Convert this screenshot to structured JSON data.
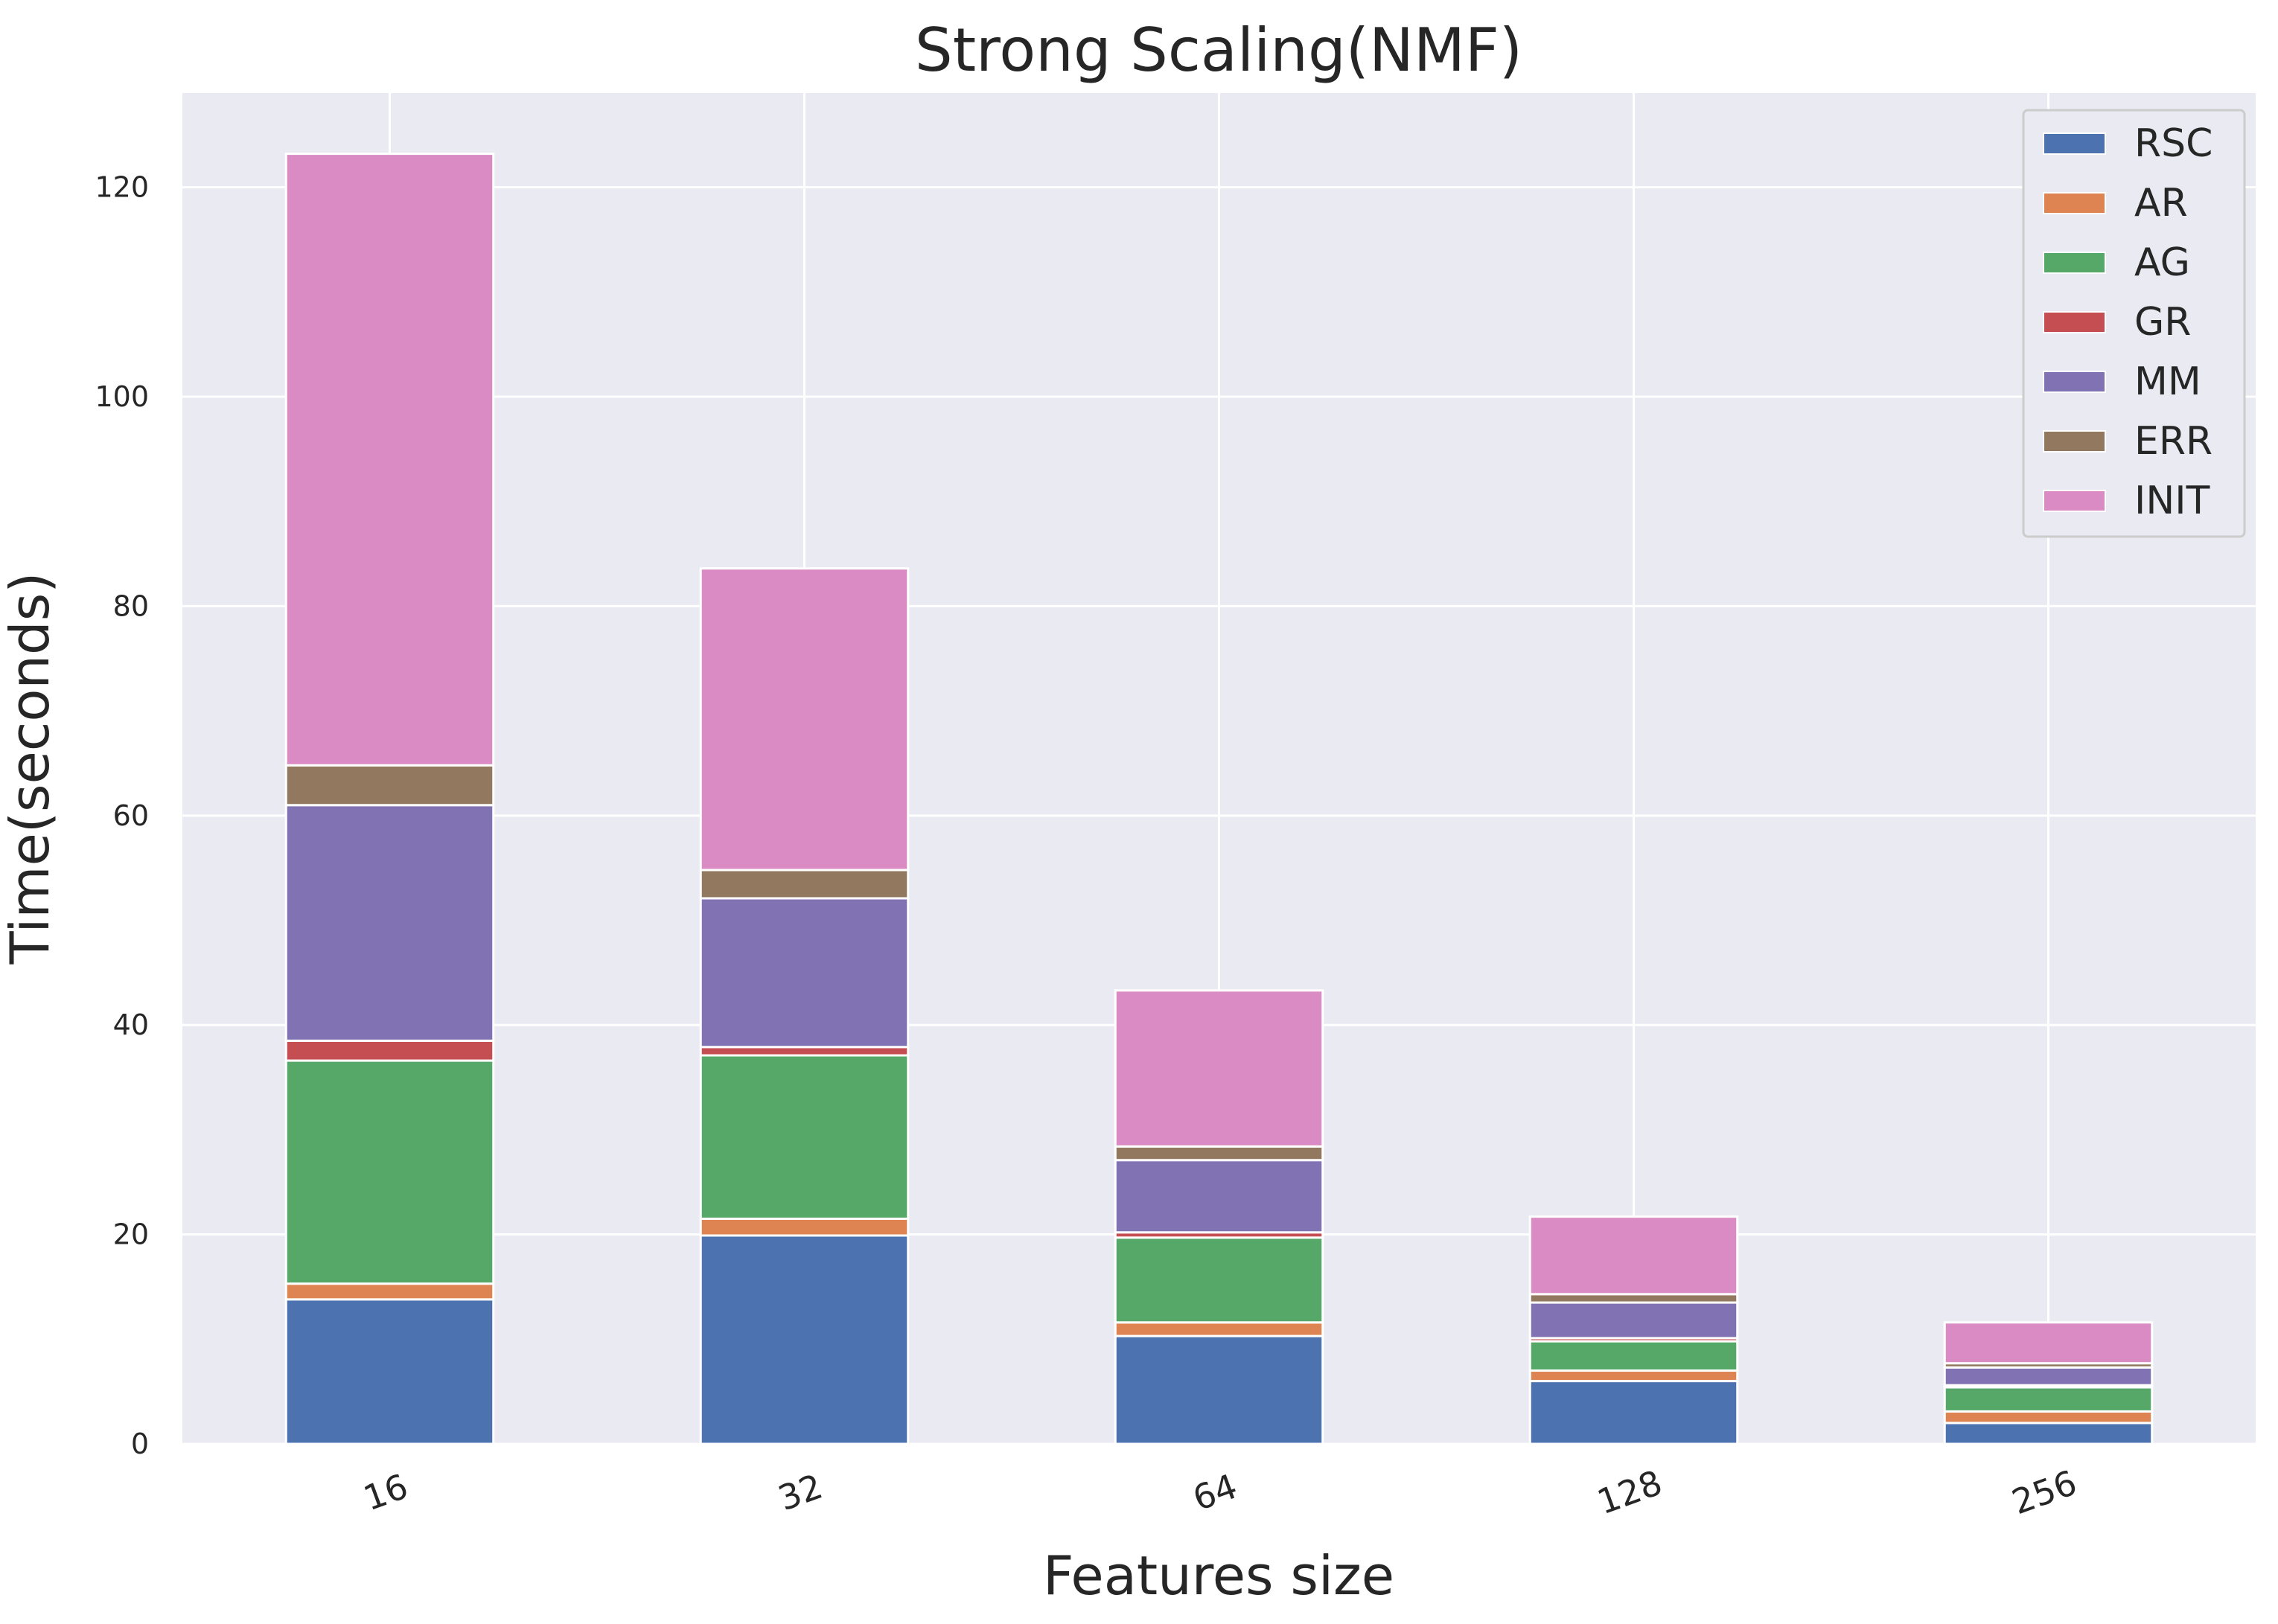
{
  "chart_data": {
    "type": "bar",
    "stacked": true,
    "title": "Strong Scaling(NMF)",
    "xlabel": "Features size",
    "ylabel": "Time(seconds)",
    "categories": [
      "16",
      "32",
      "64",
      "128",
      "256"
    ],
    "ylim": [
      0,
      129
    ],
    "yticks": [
      "0",
      "20",
      "40",
      "60",
      "80",
      "100",
      "120"
    ],
    "grid": true,
    "legend_position": "top-right",
    "series": [
      {
        "name": "RSC",
        "color": "#4c72b0",
        "values": [
          13.8,
          19.9,
          10.3,
          6.0,
          2.0
        ]
      },
      {
        "name": "AR",
        "color": "#dd8452",
        "values": [
          1.5,
          1.6,
          1.3,
          1.0,
          1.1
        ]
      },
      {
        "name": "AG",
        "color": "#55a868",
        "values": [
          21.3,
          15.6,
          8.1,
          2.8,
          2.3
        ]
      },
      {
        "name": "GR",
        "color": "#c44e52",
        "values": [
          1.9,
          0.8,
          0.5,
          0.3,
          0.2
        ]
      },
      {
        "name": "MM",
        "color": "#8172b3",
        "values": [
          22.5,
          14.2,
          6.9,
          3.4,
          1.7
        ]
      },
      {
        "name": "ERR",
        "color": "#937860",
        "values": [
          3.8,
          2.7,
          1.3,
          0.8,
          0.4
        ]
      },
      {
        "name": "INIT",
        "color": "#da8bc3",
        "values": [
          58.4,
          28.8,
          14.9,
          7.4,
          3.9
        ]
      }
    ],
    "background_color": "#eaeaf2",
    "grid_color": "#ffffff"
  }
}
